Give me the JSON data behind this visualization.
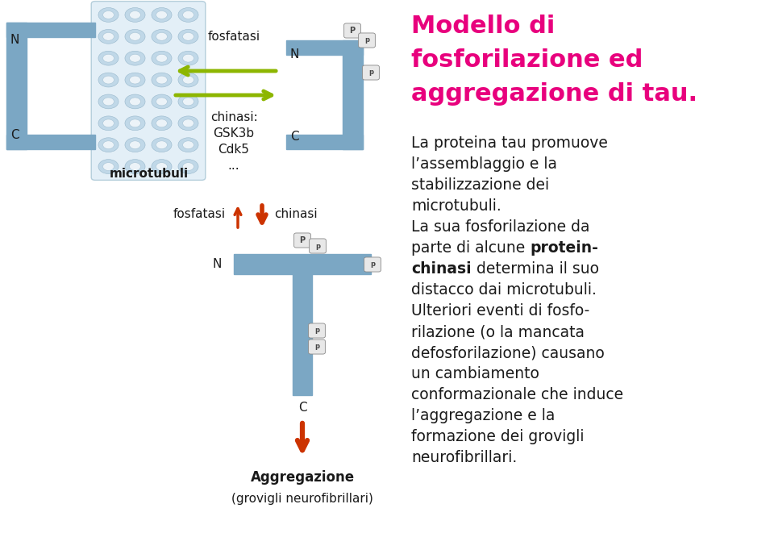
{
  "title_lines": [
    "Modello di",
    "fosforilazione ed",
    "aggregazione di tau."
  ],
  "title_color": "#E8007D",
  "bg_color": "#FFFFFF",
  "tau_color": "#7BA7C4",
  "arrow_green": "#8DB600",
  "arrow_red": "#CC3300",
  "label_color": "#1a1a1a",
  "fig_w": 9.6,
  "fig_h": 6.82,
  "dpi": 100
}
